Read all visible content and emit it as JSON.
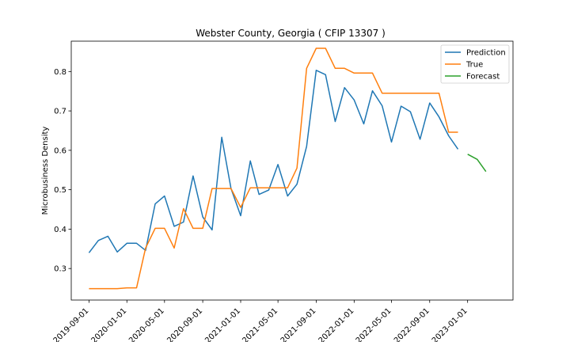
{
  "chart_data": {
    "type": "line",
    "title": "Webster County, Georgia ( CFIP 13307 )",
    "xlabel": "",
    "ylabel": "Microbusiness Density",
    "x_ticks": [
      "2019-09-01",
      "2020-01-01",
      "2020-05-01",
      "2020-09-01",
      "2021-01-01",
      "2021-05-01",
      "2021-09-01",
      "2022-01-01",
      "2022-05-01",
      "2022-09-01",
      "2023-01-01"
    ],
    "y_ticks": [
      0.3,
      0.4,
      0.5,
      0.6,
      0.7,
      0.8
    ],
    "xlim": [
      "2019-07-06",
      "2023-05-27"
    ],
    "ylim": [
      0.22,
      0.877
    ],
    "grid": false,
    "legend_position": "top-right",
    "series": [
      {
        "name": "Prediction",
        "color": "#1f77b4",
        "points": [
          [
            "2019-09-01",
            0.34
          ],
          [
            "2019-10-01",
            0.371
          ],
          [
            "2019-11-01",
            0.382
          ],
          [
            "2019-12-01",
            0.342
          ],
          [
            "2020-01-01",
            0.364
          ],
          [
            "2020-02-01",
            0.364
          ],
          [
            "2020-03-01",
            0.346
          ],
          [
            "2020-04-01",
            0.464
          ],
          [
            "2020-05-01",
            0.484
          ],
          [
            "2020-06-01",
            0.407
          ],
          [
            "2020-07-01",
            0.418
          ],
          [
            "2020-08-01",
            0.535
          ],
          [
            "2020-09-01",
            0.431
          ],
          [
            "2020-10-01",
            0.398
          ],
          [
            "2020-11-01",
            0.633
          ],
          [
            "2020-12-01",
            0.503
          ],
          [
            "2021-01-01",
            0.434
          ],
          [
            "2021-02-01",
            0.573
          ],
          [
            "2021-03-01",
            0.488
          ],
          [
            "2021-04-01",
            0.499
          ],
          [
            "2021-05-01",
            0.564
          ],
          [
            "2021-06-01",
            0.484
          ],
          [
            "2021-07-01",
            0.514
          ],
          [
            "2021-08-01",
            0.61
          ],
          [
            "2021-09-01",
            0.803
          ],
          [
            "2021-10-01",
            0.792
          ],
          [
            "2021-11-01",
            0.673
          ],
          [
            "2021-12-01",
            0.759
          ],
          [
            "2022-01-01",
            0.728
          ],
          [
            "2022-02-01",
            0.667
          ],
          [
            "2022-03-01",
            0.751
          ],
          [
            "2022-04-01",
            0.713
          ],
          [
            "2022-05-01",
            0.621
          ],
          [
            "2022-06-01",
            0.712
          ],
          [
            "2022-07-01",
            0.698
          ],
          [
            "2022-08-01",
            0.628
          ],
          [
            "2022-09-01",
            0.72
          ],
          [
            "2022-10-01",
            0.685
          ],
          [
            "2022-11-01",
            0.637
          ],
          [
            "2022-12-01",
            0.603
          ]
        ]
      },
      {
        "name": "True",
        "color": "#ff7f0e",
        "points": [
          [
            "2019-09-01",
            0.249
          ],
          [
            "2019-10-01",
            0.249
          ],
          [
            "2019-11-01",
            0.249
          ],
          [
            "2019-12-01",
            0.249
          ],
          [
            "2020-01-01",
            0.251
          ],
          [
            "2020-02-01",
            0.251
          ],
          [
            "2020-03-01",
            0.352
          ],
          [
            "2020-04-01",
            0.402
          ],
          [
            "2020-05-01",
            0.402
          ],
          [
            "2020-06-01",
            0.352
          ],
          [
            "2020-07-01",
            0.452
          ],
          [
            "2020-08-01",
            0.402
          ],
          [
            "2020-09-01",
            0.402
          ],
          [
            "2020-10-01",
            0.503
          ],
          [
            "2020-11-01",
            0.503
          ],
          [
            "2020-12-01",
            0.503
          ],
          [
            "2021-01-01",
            0.455
          ],
          [
            "2021-02-01",
            0.505
          ],
          [
            "2021-03-01",
            0.505
          ],
          [
            "2021-04-01",
            0.505
          ],
          [
            "2021-05-01",
            0.505
          ],
          [
            "2021-06-01",
            0.505
          ],
          [
            "2021-07-01",
            0.555
          ],
          [
            "2021-08-01",
            0.808
          ],
          [
            "2021-09-01",
            0.859
          ],
          [
            "2021-10-01",
            0.859
          ],
          [
            "2021-11-01",
            0.808
          ],
          [
            "2021-12-01",
            0.808
          ],
          [
            "2022-01-01",
            0.796
          ],
          [
            "2022-02-01",
            0.796
          ],
          [
            "2022-03-01",
            0.796
          ],
          [
            "2022-04-01",
            0.745
          ],
          [
            "2022-05-01",
            0.745
          ],
          [
            "2022-06-01",
            0.745
          ],
          [
            "2022-07-01",
            0.745
          ],
          [
            "2022-08-01",
            0.745
          ],
          [
            "2022-09-01",
            0.745
          ],
          [
            "2022-10-01",
            0.745
          ],
          [
            "2022-11-01",
            0.646
          ],
          [
            "2022-12-01",
            0.646
          ]
        ]
      },
      {
        "name": "Forecast",
        "color": "#2ca02c",
        "points": [
          [
            "2023-01-01",
            0.59
          ],
          [
            "2023-02-01",
            0.577
          ],
          [
            "2023-03-01",
            0.546
          ]
        ]
      }
    ]
  }
}
